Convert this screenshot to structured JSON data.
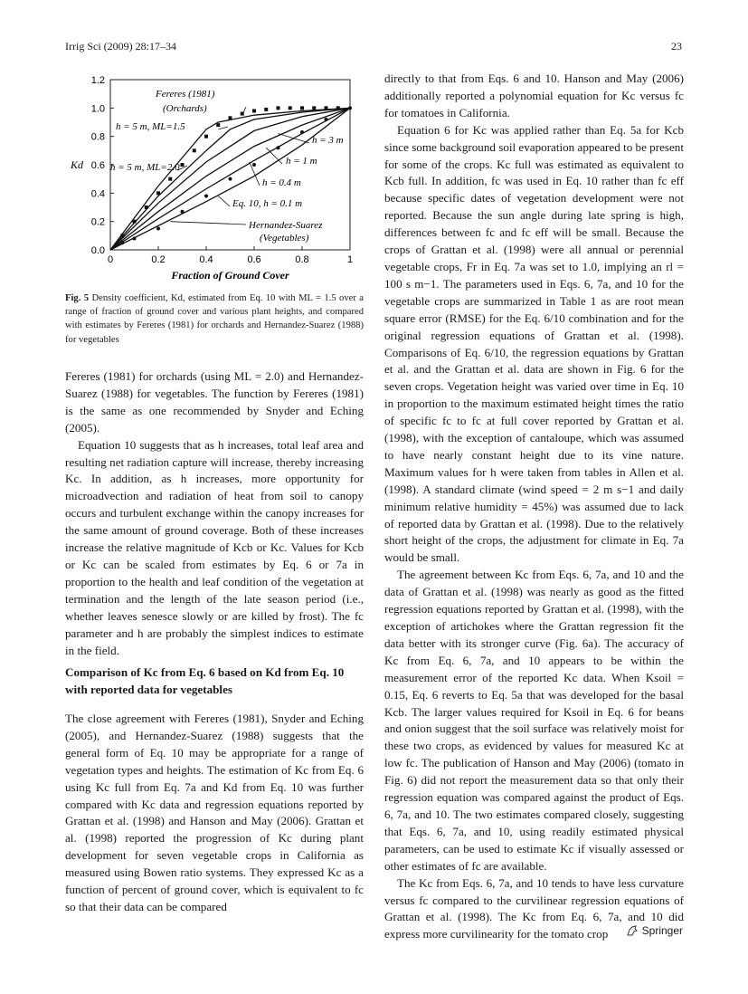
{
  "header": {
    "journal": "Irrig Sci (2009) 28:17–34",
    "page_number": "23"
  },
  "figure": {
    "caption_label": "Fig. 5",
    "caption_text": "Density coefficient, Kd, estimated from Eq. 10 with ML = 1.5 over a range of fraction of ground cover and various plant heights, and compared with estimates by Fereres (1981) for orchards and Hernandez-Suarez (1988) for vegetables",
    "chart_data": {
      "type": "line",
      "xlabel": "Fraction of Ground Cover",
      "ylabel": "Kd",
      "xlim": [
        0,
        1
      ],
      "ylim": [
        0,
        1.2
      ],
      "x_ticks": [
        "0",
        "0.2",
        "0.4",
        "0.6",
        "0.8",
        "1"
      ],
      "y_ticks": [
        "0.0",
        "0.2",
        "0.4",
        "0.6",
        "0.8",
        "1.0",
        "1.2"
      ],
      "annotations": [
        "Fereres (1981)",
        "(Orchards)",
        "h = 5 m, ML=1.5",
        "h = 5 m, ML=2.0",
        "h = 3 m",
        "h = 1 m",
        "h = 0.4 m",
        "Eq. 10, h = 0.1 m",
        "Hernandez-Suarez",
        "(Vegetables)"
      ],
      "series": [
        {
          "name": "h = 5 m, ML=1.5",
          "x": [
            0,
            0.2,
            0.4,
            0.45,
            0.6,
            0.8,
            1.0
          ],
          "y": [
            0,
            0.45,
            0.85,
            0.9,
            0.95,
            0.98,
            1.0
          ]
        },
        {
          "name": "h = 5 m, ML=2.0",
          "x": [
            0,
            0.2,
            0.4,
            0.5,
            0.6,
            0.8,
            1.0
          ],
          "y": [
            0,
            0.38,
            0.7,
            0.85,
            0.92,
            0.97,
            1.0
          ]
        },
        {
          "name": "h = 3 m",
          "x": [
            0,
            0.2,
            0.4,
            0.6,
            0.8,
            1.0
          ],
          "y": [
            0,
            0.33,
            0.62,
            0.84,
            0.94,
            1.0
          ]
        },
        {
          "name": "h = 1 m",
          "x": [
            0,
            0.2,
            0.4,
            0.6,
            0.8,
            1.0
          ],
          "y": [
            0,
            0.27,
            0.52,
            0.73,
            0.88,
            1.0
          ]
        },
        {
          "name": "h = 0.4 m",
          "x": [
            0,
            0.2,
            0.4,
            0.6,
            0.8,
            1.0
          ],
          "y": [
            0,
            0.22,
            0.43,
            0.63,
            0.82,
            1.0
          ]
        },
        {
          "name": "Eq. 10, h = 0.1 m",
          "x": [
            0,
            0.2,
            0.4,
            0.6,
            0.8,
            1.0
          ],
          "y": [
            0,
            0.17,
            0.34,
            0.52,
            0.74,
            1.0
          ]
        }
      ],
      "points": [
        {
          "name": "Fereres (1981)",
          "x": [
            0.05,
            0.1,
            0.15,
            0.2,
            0.25,
            0.3,
            0.35,
            0.4,
            0.45,
            0.5,
            0.55,
            0.6,
            0.65,
            0.7,
            0.75,
            0.8,
            0.85,
            0.9,
            0.95
          ],
          "y": [
            0.1,
            0.2,
            0.3,
            0.4,
            0.5,
            0.6,
            0.7,
            0.8,
            0.88,
            0.93,
            0.96,
            0.98,
            0.99,
            1.0,
            1.0,
            1.0,
            1.0,
            1.0,
            1.0
          ]
        },
        {
          "name": "Hernandez-Suarez (1988)",
          "x": [
            0.05,
            0.1,
            0.2,
            0.3,
            0.4,
            0.5,
            0.6,
            0.7,
            0.8,
            0.9,
            1.0
          ],
          "y": [
            0.05,
            0.08,
            0.15,
            0.27,
            0.38,
            0.5,
            0.6,
            0.72,
            0.83,
            0.92,
            1.0
          ]
        }
      ]
    }
  },
  "left_column": {
    "p1": "Fereres (1981) for orchards (using ML = 2.0) and Hernandez-Suarez (1988) for vegetables. The function by Fereres (1981) is the same as one recommended by Snyder and Eching (2005).",
    "p2": "Equation 10 suggests that as h increases, total leaf area and resulting net radiation capture will increase, thereby increasing Kc. In addition, as h increases, more opportunity for microadvection and radiation of heat from soil to canopy occurs and turbulent exchange within the canopy increases for the same amount of ground coverage. Both of these increases increase the relative magnitude of Kcb or Kc. Values for Kcb or Kc can be scaled from estimates by Eq. 6 or 7a in proportion to the health and leaf condition of the vegetation at termination and the length of the late season period (i.e., whether leaves senesce slowly or are killed by frost). The fc parameter and h are probably the simplest indices to estimate in the field.",
    "section_heading": "Comparison of Kc from Eq. 6 based on Kd from Eq. 10 with reported data for vegetables",
    "p3": "The close agreement with Fereres (1981), Snyder and Eching (2005), and Hernandez-Suarez (1988) suggests that the general form of Eq. 10 may be appropriate for a range of vegetation types and heights. The estimation of Kc from Eq. 6 using Kc full from Eq. 7a and Kd from Eq. 10 was further compared with Kc data and regression equations reported by Grattan et al. (1998) and Hanson and May (2006). Grattan et al. (1998) reported the progression of Kc during plant development for seven vegetable crops in California as measured using Bowen ratio systems. They expressed Kc as a function of percent of ground cover, which is equivalent to fc so that their data can be compared"
  },
  "right_column": {
    "p1": "directly to that from Eqs. 6 and 10. Hanson and May (2006) additionally reported a polynomial equation for Kc versus fc for tomatoes in California.",
    "p2": "Equation 6 for Kc was applied rather than Eq. 5a for Kcb since some background soil evaporation appeared to be present for some of the crops. Kc full was estimated as equivalent to Kcb full. In addition, fc was used in Eq. 10 rather than fc eff because specific dates of vegetation development were not reported. Because the sun angle during late spring is high, differences between fc and fc eff will be small. Because the crops of Grattan et al. (1998) were all annual or perennial vegetable crops, Fr in Eq. 7a was set to 1.0, implying an rl = 100 s m−1. The parameters used in Eqs. 6, 7a, and 10 for the vegetable crops are summarized in Table 1 as are root mean square error (RMSE) for the Eq. 6/10 combination and for the original regression equations of Grattan et al. (1998). Comparisons of Eq. 6/10, the regression equations by Grattan et al. and the Grattan et al. data are shown in Fig. 6 for the seven crops. Vegetation height was varied over time in Eq. 10 in proportion to the maximum estimated height times the ratio of specific fc to fc at full cover reported by Grattan et al. (1998), with the exception of cantaloupe, which was assumed to have nearly constant height due to its vine nature. Maximum values for h were taken from tables in Allen et al. (1998). A standard climate (wind speed = 2 m s−1 and daily minimum relative humidity = 45%) was assumed due to lack of reported data by Grattan et al. (1998). Due to the relatively short height of the crops, the adjustment for climate in Eq. 7a would be small.",
    "p3": "The agreement between Kc from Eqs. 6, 7a, and 10 and the data of Grattan et al. (1998) was nearly as good as the fitted regression equations reported by Grattan et al. (1998), with the exception of artichokes where the Grattan regression fit the data better with its stronger curve (Fig. 6a). The accuracy of Kc from Eq. 6, 7a, and 10 appears to be within the measurement error of the reported Kc data. When Ksoil = 0.15, Eq. 6 reverts to Eq. 5a that was developed for the basal Kcb. The larger values required for Ksoil in Eq. 6 for beans and onion suggest that the soil surface was relatively moist for these two crops, as evidenced by values for measured Kc at low fc. The publication of Hanson and May (2006) (tomato in Fig. 6) did not report the measurement data so that only their regression equation was compared against the product of Eqs. 6, 7a, and 10. The two estimates compared closely, suggesting that Eqs. 6, 7a, and 10, using readily estimated physical parameters, can be used to estimate Kc if visually assessed or other estimates of fc are available.",
    "p4": "The Kc from Eqs. 6, 7a, and 10 tends to have less curvature versus fc compared to the curvilinear regression equations of Grattan et al. (1998). The Kc from Eq. 6, 7a, and 10 did express more curvilinearity for the tomato crop"
  },
  "footer": {
    "publisher": "Springer"
  }
}
